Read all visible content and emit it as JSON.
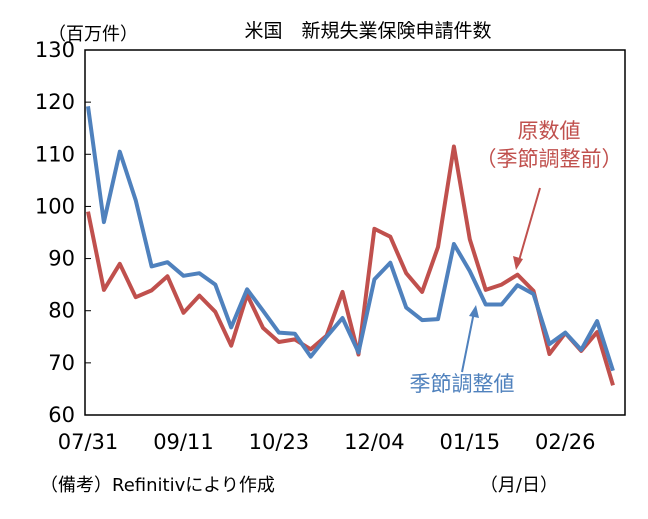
{
  "chart_data": {
    "type": "line",
    "title": "米国　新規失業保険申請件数",
    "y_unit_label": "（百万件）",
    "x_unit_label": "（月/日）",
    "source_note": "（備考）Refinitivにより作成",
    "ylim": [
      60,
      130
    ],
    "y_ticks": [
      "60",
      "70",
      "80",
      "90",
      "100",
      "110",
      "120",
      "130"
    ],
    "x_tick_labels": [
      "07/31",
      "09/11",
      "10/23",
      "12/04",
      "01/15",
      "02/26"
    ],
    "x_tick_index": [
      0,
      6,
      12,
      18,
      24,
      30
    ],
    "grid": false,
    "legend": "annotations",
    "series": [
      {
        "name": "季節調整値",
        "annotation": "季節調整値",
        "color": "#4f81bd",
        "values": [
          119.2,
          97.0,
          110.5,
          101.2,
          88.5,
          89.3,
          86.7,
          87.2,
          85.0,
          76.8,
          84.1,
          80.0,
          75.8,
          75.6,
          71.2,
          75.0,
          78.6,
          72.0,
          86.0,
          89.2,
          80.6,
          78.2,
          78.4,
          92.8,
          87.6,
          81.2,
          81.2,
          84.9,
          83.2,
          73.6,
          75.8,
          72.5,
          78.0,
          68.5
        ]
      },
      {
        "name": "原数値（季節調整前）",
        "annotation": [
          "原数値",
          "（季節調整前）"
        ],
        "color": "#c0504d",
        "values": [
          99.0,
          84.0,
          89.0,
          82.6,
          83.9,
          86.6,
          79.6,
          82.9,
          79.8,
          73.3,
          83.1,
          76.7,
          74.0,
          74.5,
          72.6,
          75.2,
          83.6,
          71.6,
          95.7,
          94.2,
          87.2,
          83.6,
          92.2,
          111.5,
          93.7,
          84.0,
          85.0,
          86.9,
          83.8,
          71.7,
          75.7,
          72.3,
          75.9,
          65.7
        ]
      }
    ]
  }
}
